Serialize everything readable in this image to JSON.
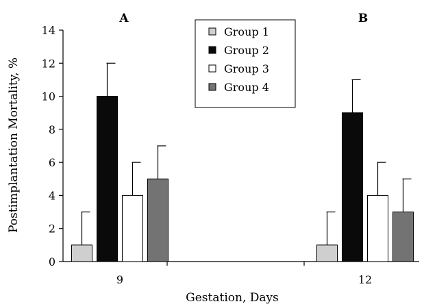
{
  "chart_data": {
    "type": "bar",
    "title": "",
    "xlabel": "Gestation, Days",
    "ylabel": "Postimplantation Mortality, %",
    "categories": [
      "9",
      "12"
    ],
    "panel_labels": [
      "A",
      "B"
    ],
    "ylim": [
      0,
      14
    ],
    "yticks": [
      0,
      2,
      4,
      6,
      8,
      10,
      12,
      14
    ],
    "grid": false,
    "legend_position": "top-center",
    "error_bars": "upper",
    "series": [
      {
        "name": "Group 1",
        "values": [
          1,
          1
        ],
        "errors": [
          2,
          2
        ],
        "color": "#cfcfcf"
      },
      {
        "name": "Group 2",
        "values": [
          10,
          9
        ],
        "errors": [
          2,
          2
        ],
        "color": "#0a0a0a"
      },
      {
        "name": "Group 3",
        "values": [
          4,
          4
        ],
        "errors": [
          2,
          2
        ],
        "color": "#ffffff"
      },
      {
        "name": "Group 4",
        "values": [
          5,
          3
        ],
        "errors": [
          2,
          2
        ],
        "color": "#737373"
      }
    ]
  }
}
